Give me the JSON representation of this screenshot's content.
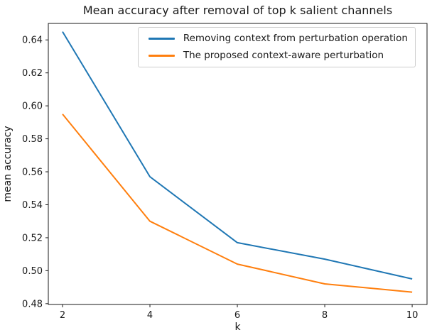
{
  "chart_data": {
    "type": "line",
    "title": "Mean accuracy after removal of top k salient channels",
    "xlabel": "k",
    "ylabel": "mean accuracy",
    "x": [
      2,
      4,
      6,
      8,
      10
    ],
    "series": [
      {
        "name": "Removing context from perturbation operation",
        "color": "#1f77b4",
        "values": [
          0.645,
          0.557,
          0.517,
          0.507,
          0.495
        ]
      },
      {
        "name": "The proposed context-aware perturbation",
        "color": "#ff7f0e",
        "values": [
          0.595,
          0.53,
          0.504,
          0.492,
          0.487
        ]
      }
    ],
    "xticks": [
      2,
      4,
      6,
      8,
      10
    ],
    "yticks": [
      0.48,
      0.5,
      0.52,
      0.54,
      0.56,
      0.58,
      0.6,
      0.62,
      0.64
    ],
    "xlim": [
      1.675,
      10.34
    ],
    "ylim": [
      0.4795,
      0.65
    ],
    "grid": false,
    "legend_position": "upper right"
  }
}
